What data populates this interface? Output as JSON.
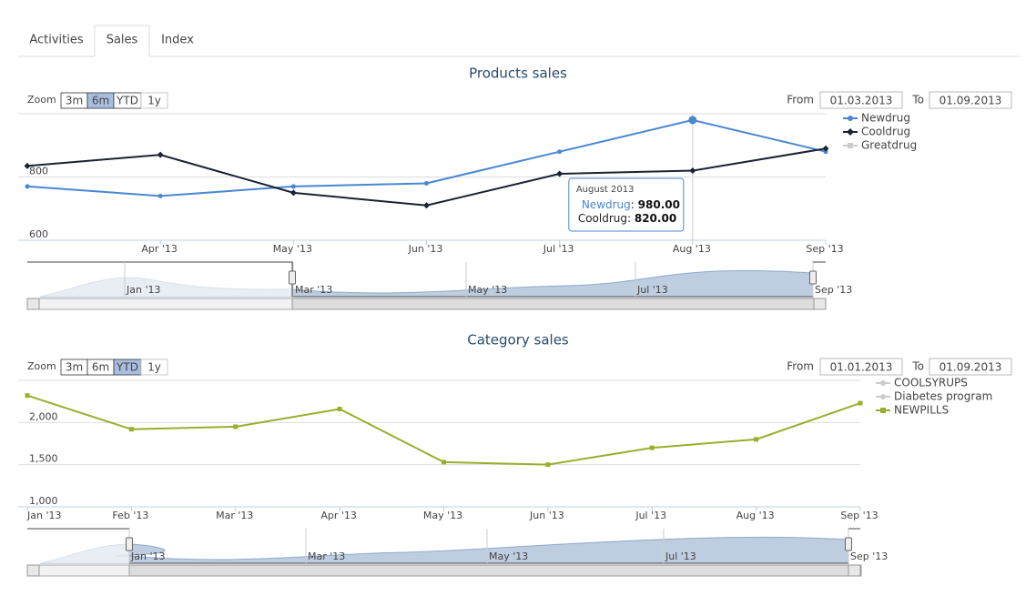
{
  "tabs": {
    "items": [
      "Activities",
      "Sales",
      "Index"
    ],
    "active": "Sales"
  },
  "chart_data": [
    {
      "type": "line",
      "title": "Products sales",
      "zoom": {
        "label": "Zoom",
        "buttons": [
          "3m",
          "6m",
          "YTD",
          "1y"
        ],
        "selected": "6m"
      },
      "range": {
        "from_label": "From",
        "from": "01.03.2013",
        "to_label": "To",
        "to": "01.09.2013"
      },
      "categories": [
        null,
        "Apr '13",
        "May '13",
        "Jun '13",
        "Jul '13",
        "Aug '13",
        "Sep '13"
      ],
      "ylim": [
        600,
        1000
      ],
      "yticks": [
        600,
        800
      ],
      "grid": true,
      "series": [
        {
          "name": "Newdrug",
          "color": "#4a86d2",
          "symbol": "circle",
          "visible": true,
          "values": [
            770,
            740,
            770,
            780,
            880,
            980,
            880
          ],
          "value_labels": [
            null,
            null,
            null,
            null,
            null,
            "980.00",
            null
          ]
        },
        {
          "name": "Cooldrug",
          "color": "#1a2233",
          "symbol": "diamond",
          "visible": true,
          "values": [
            835,
            870,
            750,
            710,
            810,
            820,
            890
          ],
          "value_labels": [
            null,
            null,
            null,
            null,
            null,
            "820.00",
            null
          ]
        },
        {
          "name": "Greatdrug",
          "color": "#cccccc",
          "symbol": "square",
          "visible": false,
          "values": [
            null,
            null,
            null,
            null,
            null,
            null,
            null
          ]
        }
      ],
      "tooltip_title": "August 2013",
      "navigator_labels": [
        "Jan '13",
        "Mar '13",
        "May '13",
        "Jul '13",
        "Sep '13"
      ]
    },
    {
      "type": "line",
      "title": "Category sales",
      "zoom": {
        "label": "Zoom",
        "buttons": [
          "3m",
          "6m",
          "YTD",
          "1y"
        ],
        "selected": "YTD"
      },
      "range": {
        "from_label": "From",
        "from": "01.01.2013",
        "to_label": "To",
        "to": "01.09.2013"
      },
      "categories": [
        "Jan '13",
        "Feb '13",
        "Mar '13",
        "Apr '13",
        "May '13",
        "Jun '13",
        "Jul '13",
        "Aug '13",
        "Sep '13"
      ],
      "ylim": [
        1000,
        2500
      ],
      "yticks": [
        {
          "value": 1000,
          "label": "1,000"
        },
        {
          "value": 1500,
          "label": "1,500"
        },
        {
          "value": 2000,
          "label": "2,000"
        }
      ],
      "grid": true,
      "series": [
        {
          "name": "COOLSYRUPS",
          "color": "#cccccc",
          "symbol": "circle",
          "visible": false,
          "values": [
            null,
            null,
            null,
            null,
            null,
            null,
            null,
            null,
            null
          ]
        },
        {
          "name": "Diabetes program",
          "color": "#cccccc",
          "symbol": "circle",
          "visible": false,
          "values": [
            null,
            null,
            null,
            null,
            null,
            null,
            null,
            null,
            null
          ]
        },
        {
          "name": "NEWPILLS",
          "color": "#9aae2e",
          "symbol": "square",
          "visible": true,
          "values": [
            2320,
            1920,
            1950,
            2160,
            1530,
            1500,
            1700,
            1800,
            2230
          ]
        }
      ],
      "navigator_labels": [
        "Jan '13",
        "Mar '13",
        "May '13",
        "Jul '13",
        "Sep '13"
      ]
    }
  ]
}
